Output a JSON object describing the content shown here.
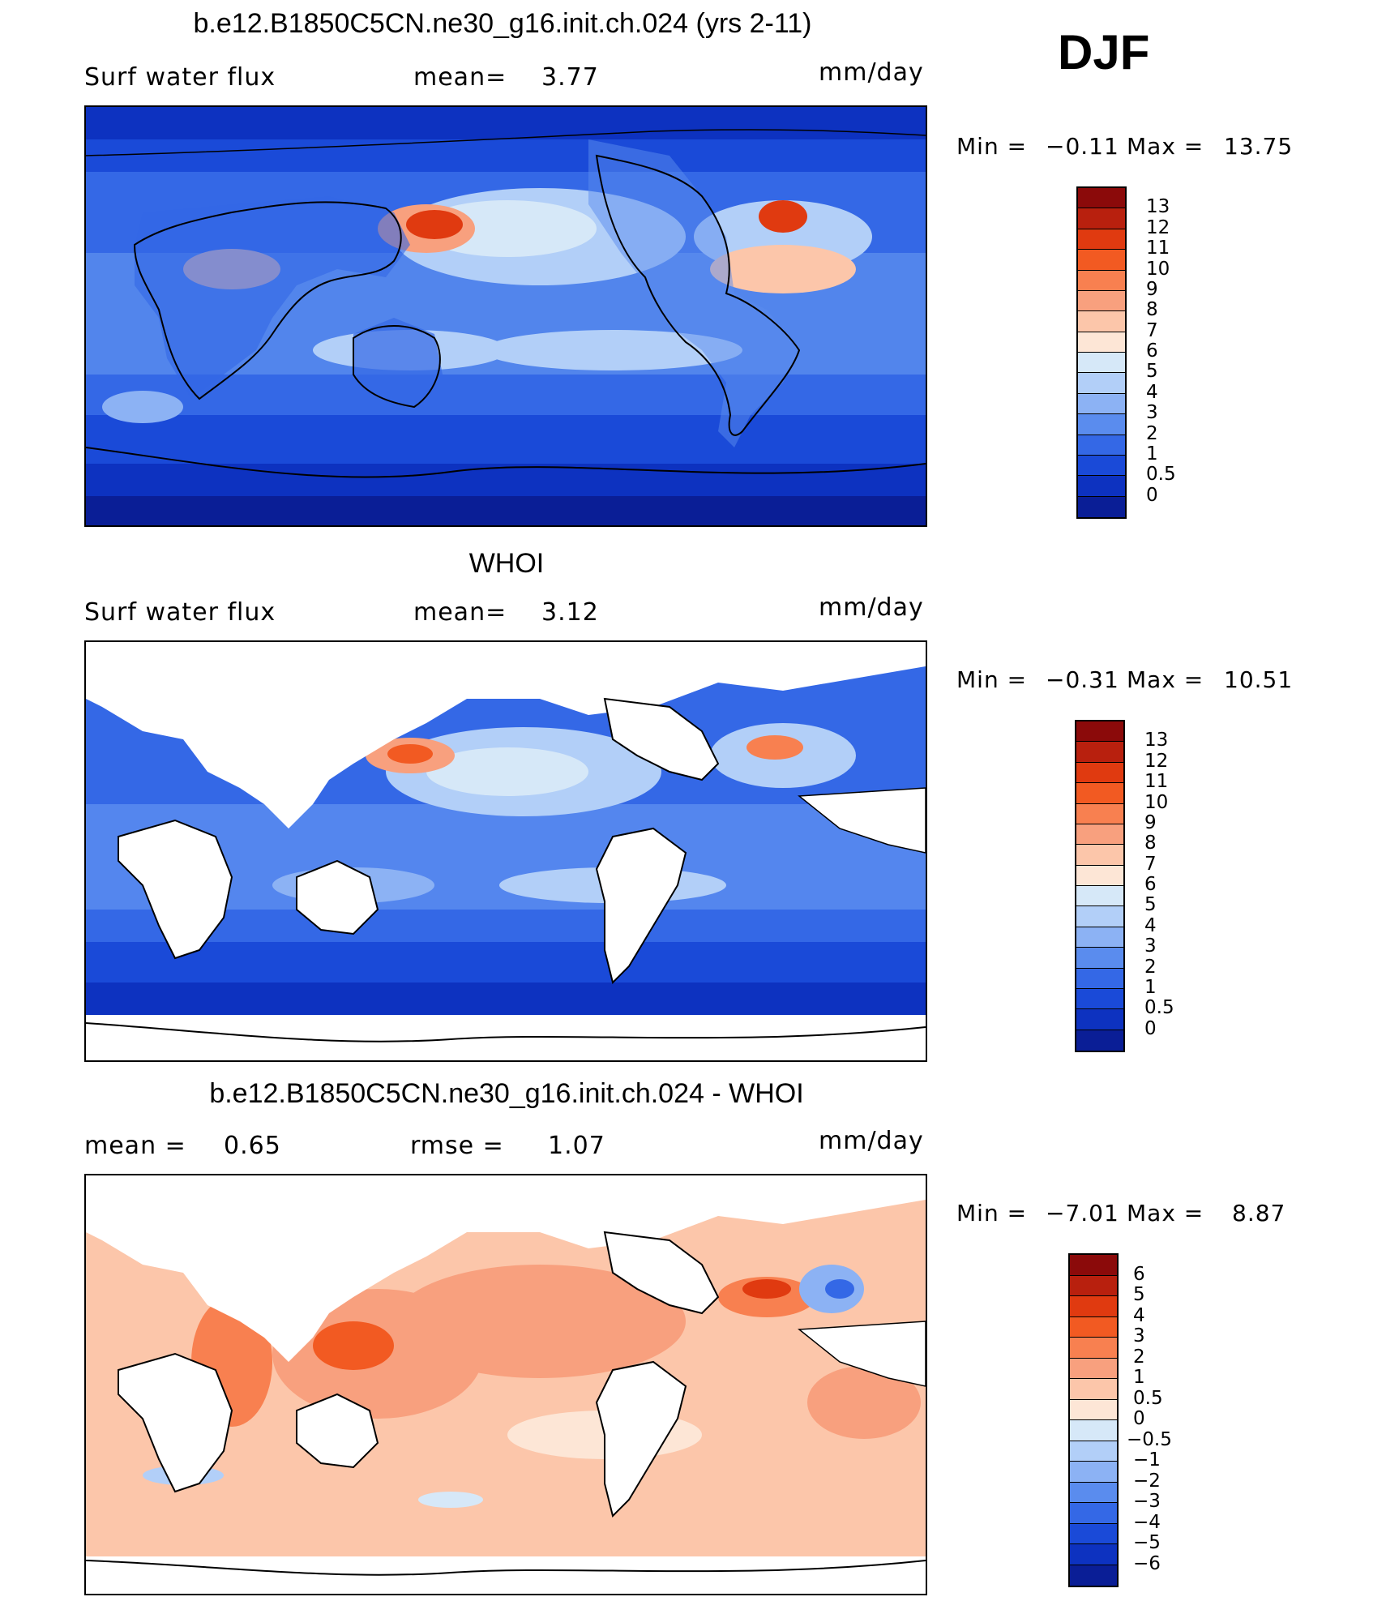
{
  "season": "DJF",
  "panels": [
    {
      "title": "b.e12.B1850C5CN.ne30_g16.init.ch.024 (yrs 2-11)",
      "left_label": "Surf  water  flux",
      "mid_label": "mean=",
      "mid_value": "3.77",
      "units": "mm/day",
      "min_label": "Min  =",
      "min_value": "−0.11",
      "max_label": "Max  =",
      "max_value": "13.75",
      "colorbar": {
        "labels": [
          "13",
          "12",
          "11",
          "10",
          "9",
          "8",
          "7",
          "6",
          "5",
          "4",
          "3",
          "2",
          "1",
          "0.5",
          "0"
        ],
        "colors": [
          "#8b0a0a",
          "#b8200e",
          "#e03a10",
          "#f25a22",
          "#f88050",
          "#f8a07e",
          "#fcc6aa",
          "#fde6d6",
          "#d6e8f8",
          "#b2cff8",
          "#8cb2f4",
          "#5a8cee",
          "#3468e6",
          "#1a4ad8",
          "#0d32c0",
          "#0a1e96"
        ]
      }
    },
    {
      "title": "WHOI",
      "left_label": "Surf  water  flux",
      "mid_label": "mean=",
      "mid_value": "3.12",
      "units": "mm/day",
      "min_label": "Min  =",
      "min_value": "−0.31",
      "max_label": "Max  =",
      "max_value": "10.51",
      "colorbar": {
        "labels": [
          "13",
          "12",
          "11",
          "10",
          "9",
          "8",
          "7",
          "6",
          "5",
          "4",
          "3",
          "2",
          "1",
          "0.5",
          "0"
        ],
        "colors": [
          "#8b0a0a",
          "#b8200e",
          "#e03a10",
          "#f25a22",
          "#f88050",
          "#f8a07e",
          "#fcc6aa",
          "#fde6d6",
          "#d6e8f8",
          "#b2cff8",
          "#8cb2f4",
          "#5a8cee",
          "#3468e6",
          "#1a4ad8",
          "#0d32c0",
          "#0a1e96"
        ]
      }
    },
    {
      "title": "b.e12.B1850C5CN.ne30_g16.init.ch.024 - WHOI",
      "left_label": "mean  =",
      "left_value": "0.65",
      "mid_label": "rmse  =",
      "mid_value": "1.07",
      "units": "mm/day",
      "min_label": "Min  =",
      "min_value": "−7.01",
      "max_label": "Max  =",
      "max_value": "8.87",
      "colorbar": {
        "labels": [
          "6",
          "5",
          "4",
          "3",
          "2",
          "1",
          "0.5",
          "0",
          "−0.5",
          "−1",
          "−2",
          "−3",
          "−4",
          "−5",
          "−6"
        ],
        "colors": [
          "#8b0a0a",
          "#b8200e",
          "#e03a10",
          "#f25a22",
          "#f88050",
          "#f8a07e",
          "#fcc6aa",
          "#fde6d6",
          "#d6e8f8",
          "#b2cff8",
          "#8cb2f4",
          "#5a8cee",
          "#3468e6",
          "#1a4ad8",
          "#0d32c0",
          "#0a1e96"
        ]
      }
    }
  ]
}
